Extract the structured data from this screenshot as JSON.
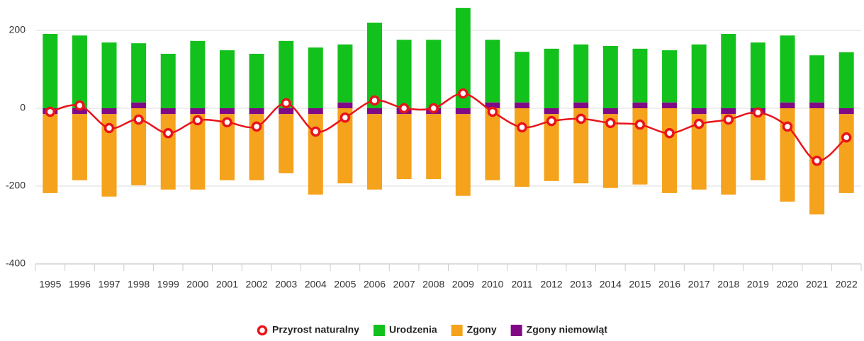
{
  "chart_data": {
    "type": "bar",
    "categories": [
      "1995",
      "1996",
      "1997",
      "1998",
      "1999",
      "2000",
      "2001",
      "2002",
      "2003",
      "2004",
      "2005",
      "2006",
      "2007",
      "2008",
      "2009",
      "2010",
      "2011",
      "2012",
      "2013",
      "2014",
      "2015",
      "2016",
      "2017",
      "2018",
      "2019",
      "2020",
      "2021",
      "2022"
    ],
    "series": [
      {
        "name": "Przyrost naturalny",
        "type": "line",
        "color": "#e8141b",
        "values": [
          -9,
          7,
          -51,
          -29,
          -64,
          -31,
          -36,
          -47,
          13,
          -60,
          -24,
          20,
          0,
          0,
          38,
          -9,
          -49,
          -33,
          -27,
          -38,
          -42,
          -64,
          -40,
          -29,
          -11,
          -47,
          -135,
          -75
        ]
      },
      {
        "name": "Urodzenia",
        "type": "bar",
        "color": "#13c11c",
        "values": [
          191,
          187,
          169,
          152,
          140,
          173,
          149,
          140,
          173,
          156,
          149,
          220,
          176,
          176,
          258,
          161,
          130,
          153,
          149,
          160,
          138,
          134,
          164,
          191,
          169,
          172,
          121,
          144
        ]
      },
      {
        "name": "Zgony",
        "type": "bar",
        "color": "#f5a21c",
        "values": [
          -203,
          -170,
          -212,
          -198,
          -194,
          -194,
          -170,
          -170,
          -152,
          -207,
          -193,
          -194,
          -167,
          -167,
          -210,
          -185,
          -202,
          -172,
          -193,
          -190,
          -196,
          -218,
          -194,
          -207,
          -170,
          -240,
          -273,
          -203
        ]
      },
      {
        "name": "Zgony niemowląt",
        "type": "bar",
        "color": "#800a85",
        "values": [
          -15,
          -15,
          -15,
          15,
          -15,
          -15,
          -15,
          -15,
          -15,
          -15,
          15,
          -15,
          -15,
          -15,
          -15,
          15,
          15,
          -15,
          15,
          -15,
          15,
          15,
          -15,
          -15,
          -15,
          15,
          15,
          -15
        ]
      }
    ],
    "ylim": [
      -400,
      262
    ],
    "yticks": [
      -400,
      -200,
      0,
      200
    ],
    "grid": true
  }
}
